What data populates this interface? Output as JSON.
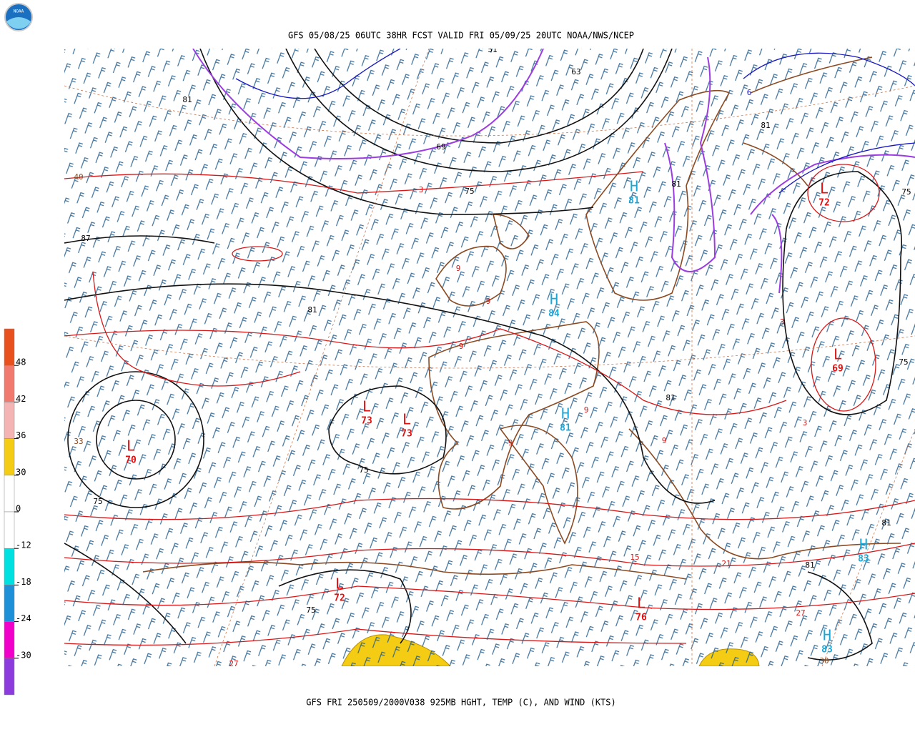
{
  "header": {
    "logo": "NOAA",
    "title": "GFS 05/08/25 06UTC 38HR FCST VALID FRI 05/09/25 20UTC NOAA/NWS/NCEP"
  },
  "footer": "GFS FRI 250509/2000V038 925MB HGHT, TEMP (C), AND WIND (KTS)",
  "colorbar": {
    "colors": [
      "#e8501e",
      "#f07a6e",
      "#f5b4b4",
      "#f5cc14",
      "#ffffff",
      "#ffffff",
      "#00e0e0",
      "#1e90d8",
      "#f000c8",
      "#8c3cdc"
    ],
    "ticks": [
      48,
      42,
      36,
      30,
      0,
      -12,
      -18,
      -24,
      -30
    ]
  },
  "centers": [
    {
      "symbol": "L",
      "value": 70
    },
    {
      "symbol": "L",
      "value": 73
    },
    {
      "symbol": "L",
      "value": 73
    },
    {
      "symbol": "L",
      "value": 72
    },
    {
      "symbol": "L",
      "value": 69
    },
    {
      "symbol": "L",
      "value": 72
    },
    {
      "symbol": "L",
      "value": 76
    },
    {
      "symbol": "H",
      "value": 84
    },
    {
      "symbol": "H",
      "value": 81
    },
    {
      "symbol": "H",
      "value": 81
    },
    {
      "symbol": "H",
      "value": 83
    },
    {
      "symbol": "H",
      "value": 83
    }
  ],
  "contour_labels": [
    "51",
    "63",
    "69",
    "75",
    "81",
    "87",
    "81",
    "81",
    "81",
    "75",
    "75",
    "81",
    "75",
    "75",
    "33",
    "40",
    "81",
    "81",
    "75",
    "27",
    "30",
    "27",
    "15",
    "21",
    "9",
    "9",
    "9",
    "9",
    "9",
    "9",
    "3",
    "3",
    "3",
    "6"
  ]
}
